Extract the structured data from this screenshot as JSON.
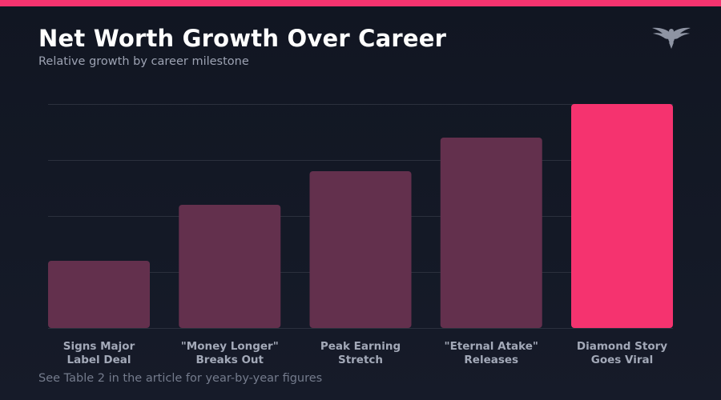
{
  "header": {
    "title": "Net Worth Growth Over Career",
    "subtitle": "Relative growth by career milestone"
  },
  "footnote": "See Table 2 in the article for year-by-year figures",
  "logo": {
    "icon": "eagle-logo-icon"
  },
  "colors": {
    "accent": "#f5336f",
    "bar": "#63304d",
    "background": "#131825"
  },
  "chart_data": {
    "type": "bar",
    "title": "Net Worth Growth Over Career",
    "subtitle": "Relative growth by career milestone",
    "xlabel": "",
    "ylabel": "",
    "categories": [
      [
        "Signs Major",
        "Label Deal"
      ],
      [
        "\"Money Longer\"",
        "Breaks Out"
      ],
      [
        "Peak Earning",
        "Stretch"
      ],
      [
        "\"Eternal Atake\"",
        "Releases"
      ],
      [
        "Diamond Story",
        "Goes Viral"
      ]
    ],
    "values": [
      1.2,
      2.2,
      2.8,
      3.4,
      4.0
    ],
    "highlight_index": 4,
    "ylim": [
      0,
      4
    ],
    "grid": true,
    "y_tick_labels_shown": false
  }
}
